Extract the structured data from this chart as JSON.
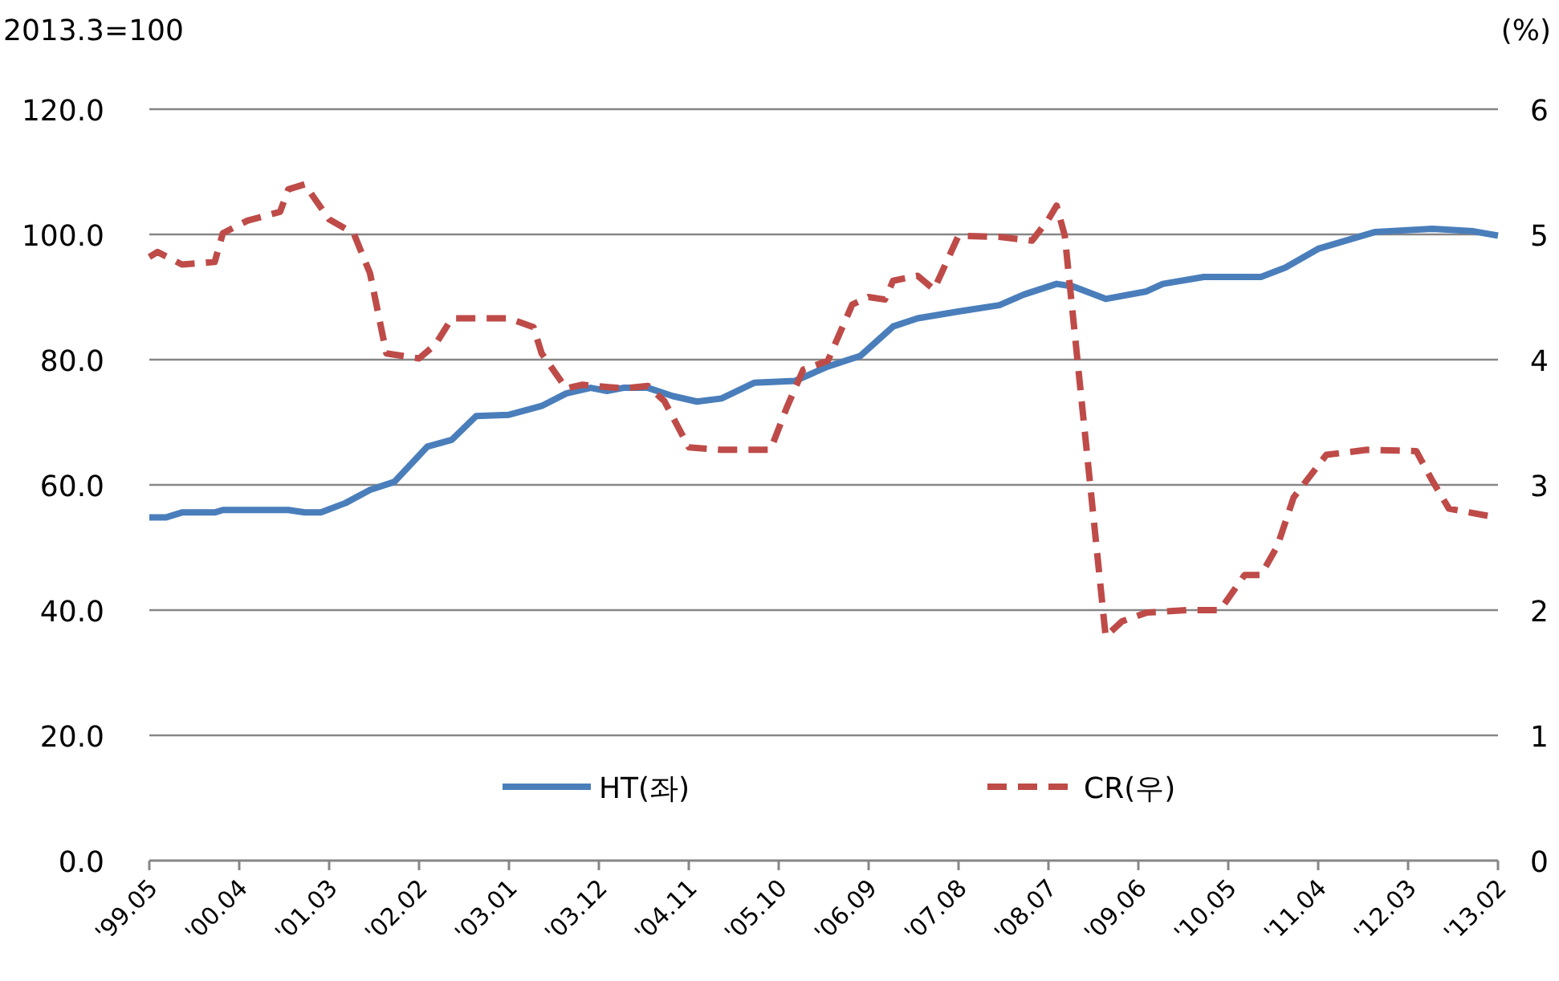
{
  "chart_data": {
    "type": "line",
    "ylabel": "2013.3=100",
    "y2label": "(%)",
    "xlim": [
      "1999-05",
      "2013-02"
    ],
    "xticks": [
      {
        "value": "1999-05",
        "label": "'99.05"
      },
      {
        "value": "2000-04",
        "label": "'00.04"
      },
      {
        "value": "2001-03",
        "label": "'01.03"
      },
      {
        "value": "2002-02",
        "label": "'02.02"
      },
      {
        "value": "2003-01",
        "label": "'03.01"
      },
      {
        "value": "2003-12",
        "label": "'03.12"
      },
      {
        "value": "2004-11",
        "label": "'04.11"
      },
      {
        "value": "2005-10",
        "label": "'05.10"
      },
      {
        "value": "2006-09",
        "label": "'06.09"
      },
      {
        "value": "2007-08",
        "label": "'07.08"
      },
      {
        "value": "2008-07",
        "label": "'08.07"
      },
      {
        "value": "2009-06",
        "label": "'09.06"
      },
      {
        "value": "2010-05",
        "label": "'10.05"
      },
      {
        "value": "2011-04",
        "label": "'11.04"
      },
      {
        "value": "2012-03",
        "label": "'12.03"
      },
      {
        "value": "2013-02",
        "label": "'13.02"
      }
    ],
    "ylim": [
      0,
      120
    ],
    "yticks": [
      {
        "value": 0,
        "label": "0.0"
      },
      {
        "value": 20,
        "label": "20.0"
      },
      {
        "value": 40,
        "label": "40.0"
      },
      {
        "value": 60,
        "label": "60.0"
      },
      {
        "value": 80,
        "label": "80.0"
      },
      {
        "value": 100,
        "label": "100.0"
      },
      {
        "value": 120,
        "label": "120.0"
      }
    ],
    "y2lim": [
      0,
      6
    ],
    "y2ticks": [
      0,
      1,
      2,
      3,
      4,
      5,
      6
    ],
    "grid": "y",
    "legend": "bottom",
    "series": [
      {
        "name": "HT(좌)",
        "color": "#4a7ebb",
        "line_style": "solid",
        "x": [
          "1999-05",
          "1999-07",
          "1999-09",
          "2000-01",
          "2000-02",
          "2000-10",
          "2000-12",
          "2001-02",
          "2001-05",
          "2001-08",
          "2001-11",
          "2002-03",
          "2002-06",
          "2002-09",
          "2003-01",
          "2003-05",
          "2003-08",
          "2003-11",
          "2004-01",
          "2004-03",
          "2004-06",
          "2004-09",
          "2004-12",
          "2005-03",
          "2005-07",
          "2005-12",
          "2006-04",
          "2006-08",
          "2006-12",
          "2007-03",
          "2007-08",
          "2008-01",
          "2008-04",
          "2008-08",
          "2008-10",
          "2009-02",
          "2009-07",
          "2009-09",
          "2010-02",
          "2010-09",
          "2010-12",
          "2011-04",
          "2011-11",
          "2012-06",
          "2012-11",
          "2013-02"
        ],
        "values": [
          54.8,
          54.8,
          55.6,
          55.6,
          56.0,
          56.0,
          55.6,
          55.6,
          57.1,
          59.2,
          60.5,
          66.1,
          67.2,
          71.0,
          71.2,
          72.6,
          74.6,
          75.5,
          75.0,
          75.5,
          75.5,
          74.2,
          73.3,
          73.8,
          76.3,
          76.6,
          78.9,
          80.6,
          85.3,
          86.6,
          87.7,
          88.7,
          90.4,
          92.1,
          91.7,
          89.7,
          90.9,
          92.1,
          93.2,
          93.2,
          94.7,
          97.7,
          100.4,
          100.9,
          100.5,
          99.8
        ]
      },
      {
        "name": "CR(우)",
        "color": "#be4b48",
        "line_style": "dashed",
        "axis": "y2",
        "x": [
          "1999-05",
          "1999-06",
          "1999-09",
          "2000-01",
          "2000-02",
          "2000-05",
          "2000-09",
          "2000-10",
          "2000-12",
          "2001-03",
          "2001-06",
          "2001-08",
          "2001-10",
          "2002-02",
          "2002-04",
          "2002-06",
          "2003-01",
          "2003-04",
          "2003-05",
          "2003-08",
          "2003-10",
          "2004-03",
          "2004-06",
          "2004-08",
          "2004-11",
          "2005-03",
          "2005-09",
          "2005-11",
          "2006-01",
          "2006-04",
          "2006-07",
          "2006-09",
          "2006-11",
          "2006-12",
          "2007-03",
          "2007-05",
          "2007-08",
          "2008-01",
          "2008-05",
          "2008-07",
          "2008-08",
          "2008-09",
          "2009-02",
          "2009-04",
          "2009-07",
          "2009-12",
          "2010-04",
          "2010-07",
          "2010-09",
          "2010-11",
          "2011-01",
          "2011-05",
          "2011-10",
          "2012-04",
          "2012-06",
          "2012-08",
          "2013-01",
          "2013-02"
        ],
        "values": [
          4.82,
          4.86,
          4.76,
          4.78,
          5.01,
          5.11,
          5.18,
          5.36,
          5.4,
          5.12,
          5.01,
          4.69,
          4.05,
          4.01,
          4.12,
          4.33,
          4.33,
          4.26,
          4.05,
          3.77,
          3.8,
          3.77,
          3.79,
          3.67,
          3.3,
          3.28,
          3.28,
          3.62,
          3.92,
          3.99,
          4.44,
          4.5,
          4.48,
          4.63,
          4.67,
          4.56,
          4.99,
          4.98,
          4.95,
          5.12,
          5.23,
          4.99,
          1.79,
          1.91,
          1.98,
          2.0,
          2.0,
          2.28,
          2.28,
          2.51,
          2.9,
          3.24,
          3.28,
          3.27,
          3.03,
          2.81,
          2.75,
          2.75
        ]
      }
    ]
  }
}
